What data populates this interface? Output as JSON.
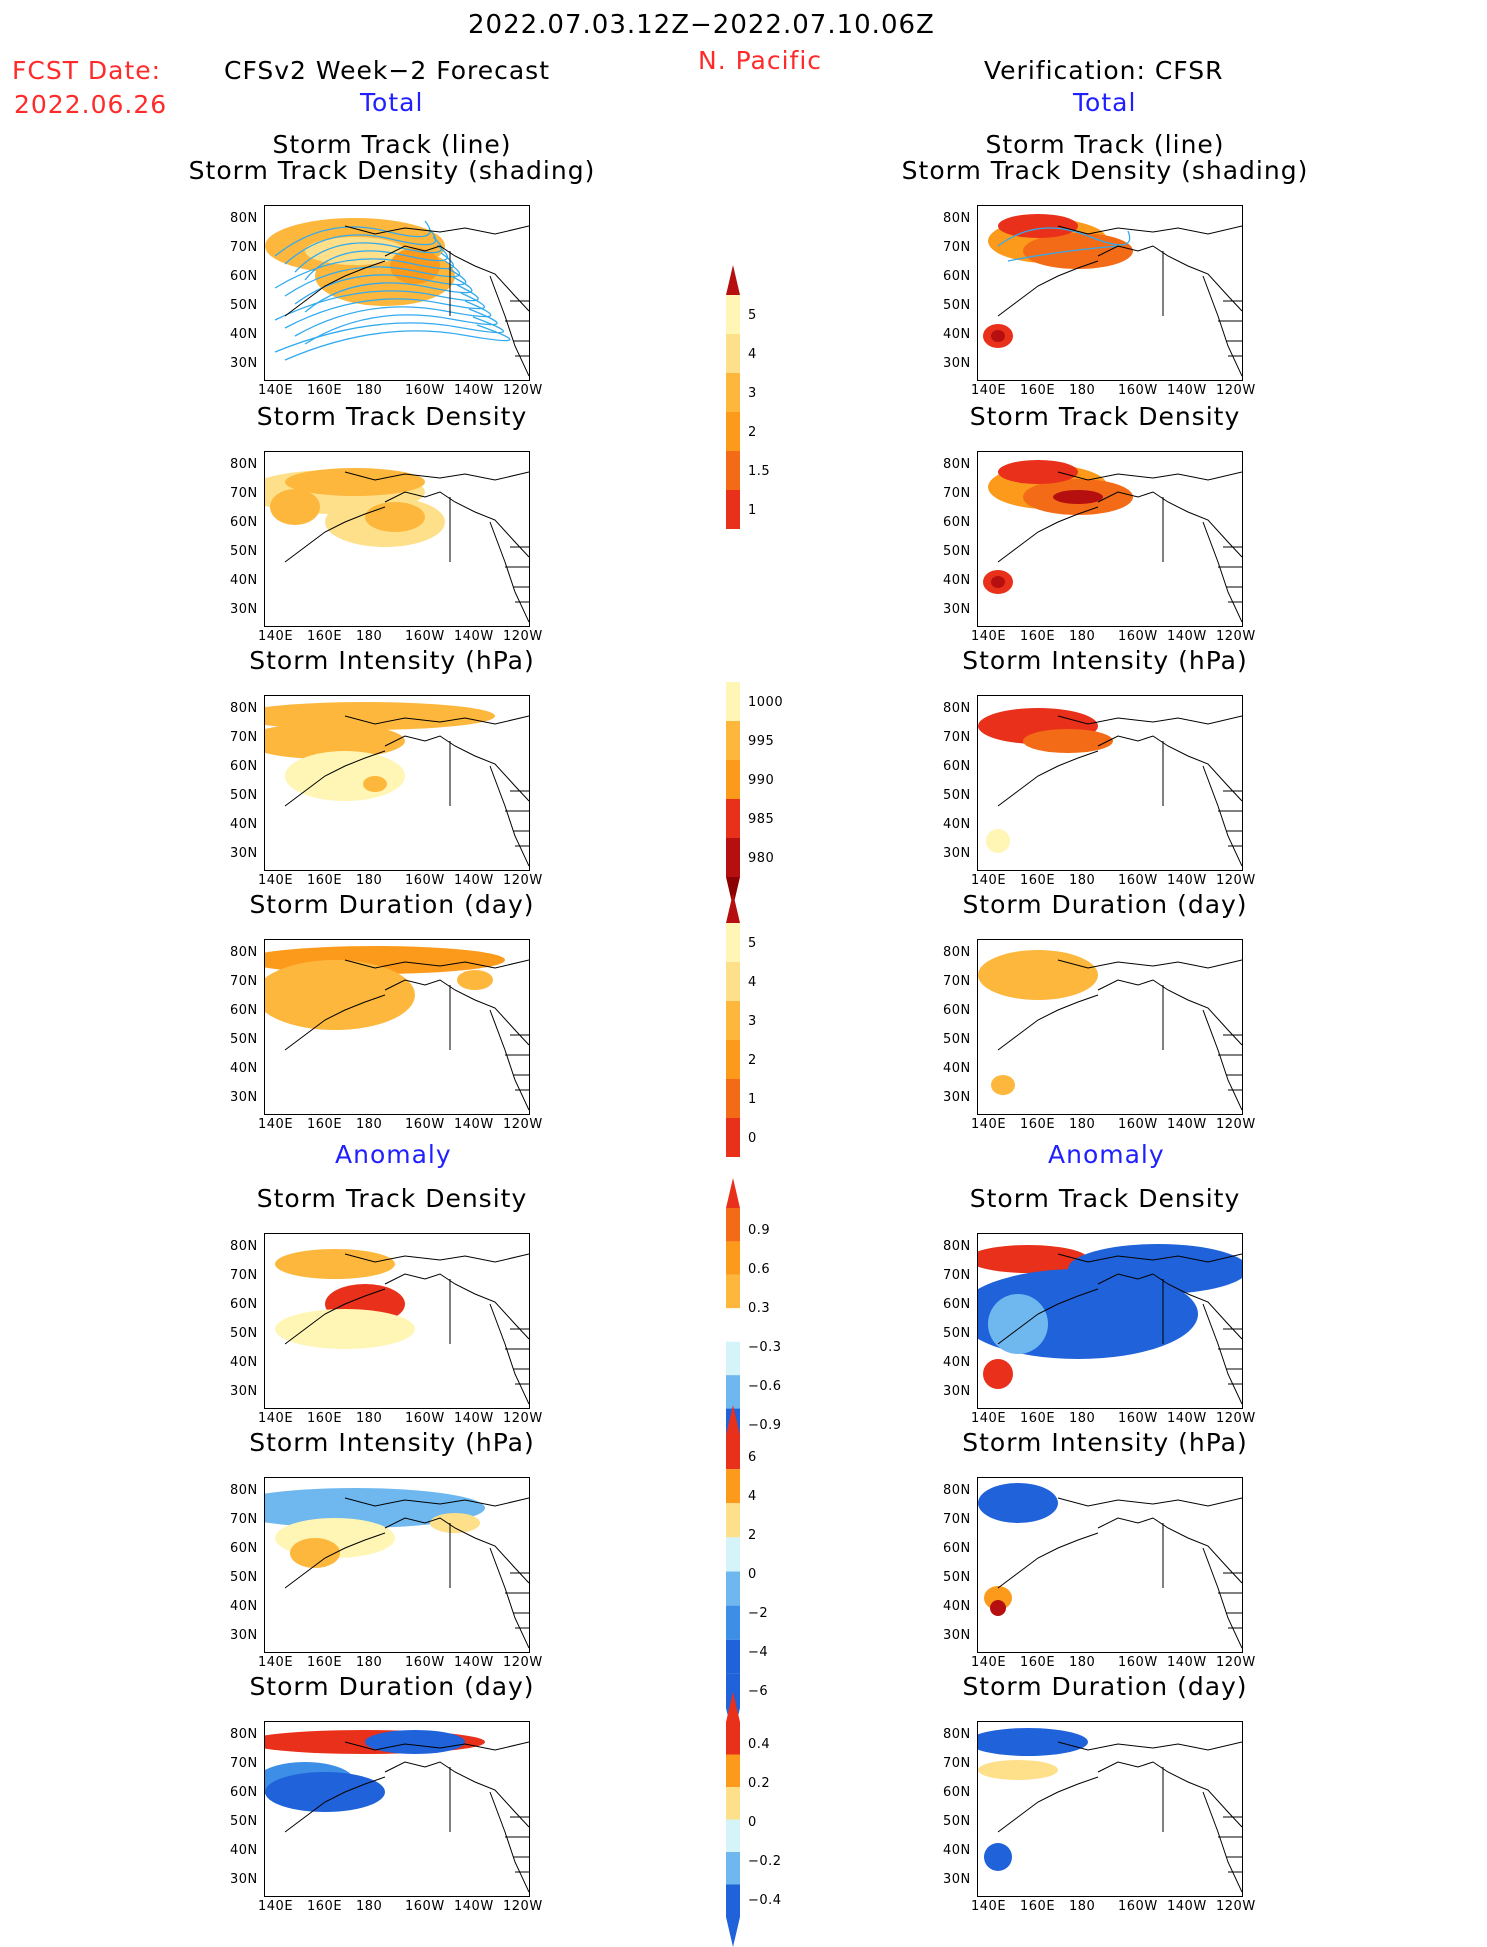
{
  "header": {
    "date_range": "2022.07.03.12Z−2022.07.10.06Z",
    "region": "N. Pacific",
    "fcst_label": "FCST Date:",
    "fcst_date": "2022.06.26",
    "left_title": "CFSv2 Week−2 Forecast",
    "right_title": "Verification: CFSR",
    "total_left": "Total",
    "total_right": "Total",
    "anomaly_left": "Anomaly",
    "anomaly_right": "Anomaly"
  },
  "panel_titles": {
    "track_line": "Storm Track (line)",
    "track_shading": "Storm Track Density (shading)",
    "density": "Storm Track Density",
    "intensity": "Storm Intensity (hPa)",
    "duration": "Storm Duration (day)"
  },
  "axes": {
    "lat_ticks": [
      "80N",
      "70N",
      "60N",
      "50N",
      "40N",
      "30N"
    ],
    "lon_ticks": [
      "140E",
      "160E",
      "180",
      "160W",
      "140W",
      "120W"
    ]
  },
  "colorbars": {
    "density_total": [
      "5",
      "4",
      "3",
      "2",
      "1.5",
      "1"
    ],
    "intensity_total": [
      "1000",
      "995",
      "990",
      "985",
      "980"
    ],
    "duration_total": [
      "5",
      "4",
      "3",
      "2",
      "1",
      "0"
    ],
    "density_anom": [
      "0.9",
      "0.6",
      "0.3",
      "−0.3",
      "−0.6",
      "−0.9"
    ],
    "intensity_anom": [
      "6",
      "4",
      "2",
      "0",
      "−2",
      "−4",
      "−6"
    ],
    "duration_anom": [
      "0.4",
      "0.2",
      "0",
      "−0.2",
      "−0.4"
    ]
  },
  "colors": {
    "warm": [
      "#fff5b4",
      "#fee08a",
      "#fdb73c",
      "#fc9a1c",
      "#f36b16",
      "#e8301a",
      "#b5100f",
      "#8b0000"
    ],
    "cool": [
      "#d4f4fa",
      "#a6e4f2",
      "#6fb8ef",
      "#3c8ee6",
      "#1f62d9",
      "#1747c4"
    ],
    "track_line": "#33aaee"
  }
}
